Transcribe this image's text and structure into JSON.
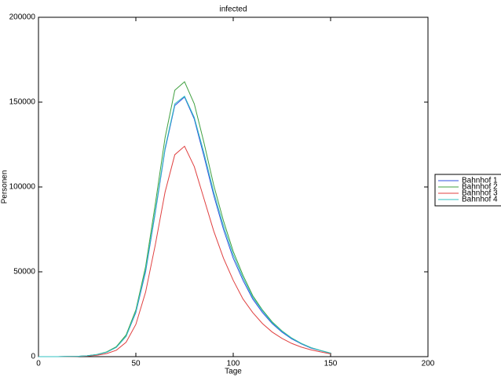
{
  "chart_data": {
    "type": "line",
    "title": "infected",
    "xlabel": "Tage",
    "ylabel": "Personen",
    "x": [
      0,
      5,
      10,
      15,
      20,
      25,
      30,
      35,
      40,
      45,
      50,
      55,
      60,
      65,
      70,
      75,
      80,
      85,
      90,
      95,
      100,
      105,
      110,
      115,
      120,
      125,
      130,
      135,
      140,
      145,
      150
    ],
    "series": [
      {
        "name": "Bahnhof 1",
        "color": "#3050e0",
        "values": [
          0,
          0,
          0,
          100,
          200,
          500,
          1200,
          2600,
          5500,
          12000,
          26000,
          50000,
          85000,
          122000,
          148000,
          153000,
          140000,
          118000,
          95000,
          75000,
          58000,
          45000,
          34000,
          26000,
          19500,
          14500,
          10500,
          7500,
          5000,
          3500,
          2000
        ]
      },
      {
        "name": "Bahnhof 2",
        "color": "#40a040",
        "values": [
          0,
          0,
          0,
          100,
          200,
          550,
          1300,
          2800,
          5900,
          12800,
          27500,
          53000,
          90000,
          129000,
          157000,
          162000,
          149000,
          126000,
          101000,
          80000,
          62000,
          48000,
          36000,
          27500,
          20500,
          15200,
          11000,
          7800,
          5300,
          3600,
          2100
        ]
      },
      {
        "name": "Bahnhof 3",
        "color": "#e04040",
        "values": [
          0,
          0,
          0,
          80,
          150,
          350,
          800,
          1800,
          3800,
          8500,
          19000,
          38000,
          66000,
          97000,
          119000,
          124000,
          112000,
          93000,
          74000,
          58000,
          45000,
          34000,
          26000,
          19500,
          14500,
          10800,
          7800,
          5600,
          4000,
          2800,
          1600
        ]
      },
      {
        "name": "Bahnhof 4",
        "color": "#30c0c0",
        "values": [
          0,
          0,
          0,
          100,
          200,
          500,
          1200,
          2600,
          5500,
          12000,
          26500,
          51000,
          86000,
          123000,
          149000,
          153500,
          141000,
          120000,
          97000,
          77000,
          60000,
          46500,
          35000,
          27000,
          20000,
          15000,
          10900,
          7800,
          5300,
          3600,
          2100
        ]
      }
    ],
    "xlim": [
      0,
      200
    ],
    "xticks": [
      0,
      50,
      100,
      150,
      200
    ],
    "ylim": [
      0,
      200000
    ],
    "yticks": [
      0,
      50000,
      100000,
      150000,
      200000
    ],
    "grid": false,
    "legend": "right"
  }
}
